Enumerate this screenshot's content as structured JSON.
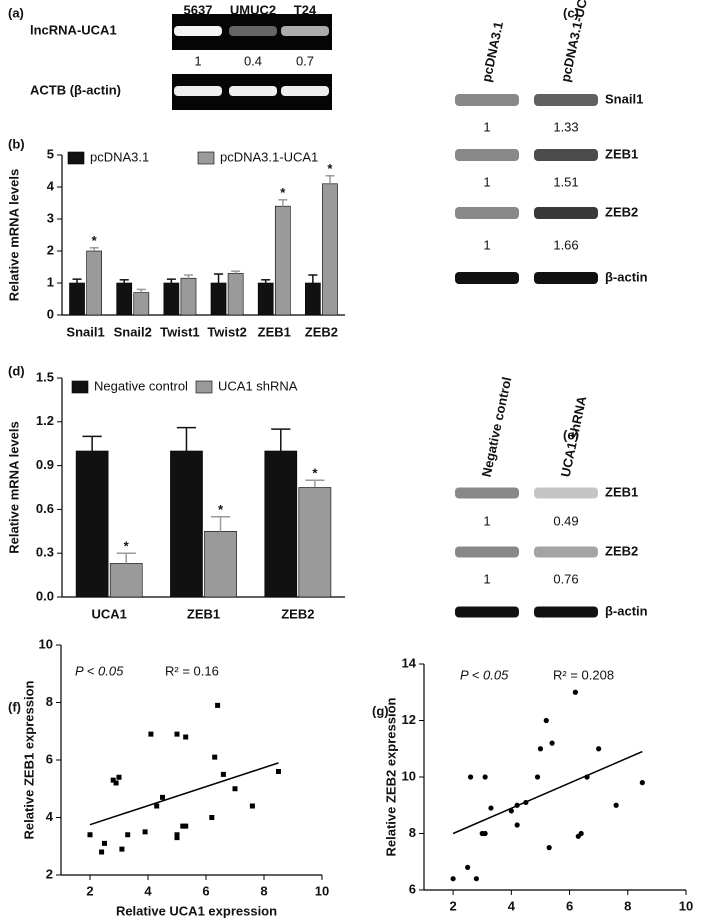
{
  "blots": [
    {
      "panel": "(a)",
      "lanes": [
        "5637",
        "UMUC2",
        "T24"
      ],
      "rows": [
        {
          "label": "lncRNA-UCA1",
          "values": [
            1,
            0.4,
            0.7
          ]
        },
        {
          "label": "ACTB (β-actin)"
        }
      ]
    },
    {
      "panel": "(c)",
      "lanes": [
        "pcDNA3.1",
        "pcDNA3.1-UCA1"
      ],
      "rows": [
        {
          "label": "Snail1",
          "values": [
            1,
            1.33
          ]
        },
        {
          "label": "ZEB1",
          "values": [
            1,
            1.51
          ]
        },
        {
          "label": "ZEB2",
          "values": [
            1,
            1.66
          ]
        },
        {
          "label": "β-actin"
        }
      ]
    },
    {
      "panel": "(e)",
      "lanes": [
        "Negative control",
        "UCA1 shRNA"
      ],
      "rows": [
        {
          "label": "ZEB1",
          "values": [
            1,
            0.49
          ]
        },
        {
          "label": "ZEB2",
          "values": [
            1,
            0.76
          ]
        },
        {
          "label": "β-actin"
        }
      ]
    }
  ],
  "chart_data": [
    {
      "type": "bar",
      "panel": "(b)",
      "y_label": "Relative mRNA levels",
      "categories": [
        "Snail1",
        "Snail2",
        "Twist1",
        "Twist2",
        "ZEB1",
        "ZEB2"
      ],
      "ylim": [
        0,
        5
      ],
      "yticks": [
        0,
        1,
        2,
        3,
        4,
        5
      ],
      "series": [
        {
          "name": "pcDNA3.1",
          "color": "#111111",
          "values": [
            1,
            1,
            1,
            1,
            1,
            1
          ],
          "errors": [
            0.12,
            0.1,
            0.12,
            0.28,
            0.1,
            0.25
          ]
        },
        {
          "name": "pcDNA3.1-UCA1",
          "color": "#9a9a9a",
          "values": [
            2.0,
            0.7,
            1.15,
            1.3,
            3.4,
            4.1
          ],
          "errors": [
            0.1,
            0.1,
            0.1,
            0.07,
            0.2,
            0.25
          ],
          "significance": [
            "*",
            null,
            null,
            null,
            "*",
            "*"
          ]
        }
      ]
    },
    {
      "type": "bar",
      "panel": "(d)",
      "y_label": "Relative mRNA levels",
      "categories": [
        "UCA1",
        "ZEB1",
        "ZEB2"
      ],
      "ylim": [
        0,
        1.5
      ],
      "yticks": [
        {
          "value": 0,
          "label": "0.0"
        },
        0.3,
        0.6,
        0.9,
        1.2,
        1.5
      ],
      "series": [
        {
          "name": "Negative control",
          "color": "#111111",
          "values": [
            1,
            1,
            1
          ],
          "errors": [
            0.1,
            0.16,
            0.15
          ]
        },
        {
          "name": "UCA1 shRNA",
          "color": "#9a9a9a",
          "values": [
            0.23,
            0.45,
            0.75
          ],
          "errors": [
            0.07,
            0.1,
            0.05
          ],
          "significance": [
            "*",
            "*",
            "*"
          ]
        }
      ]
    },
    {
      "type": "scatter",
      "panel": "(f)",
      "x_label": "Relative UCA1 expression",
      "y_label": "Relative ZEB1 expression",
      "annotations": [
        "P < 0.05",
        "R² = 0.16"
      ],
      "xlim": [
        1,
        10
      ],
      "xticks": [
        2,
        4,
        6,
        8,
        10
      ],
      "ylim": [
        2,
        10
      ],
      "yticks": [
        2,
        4,
        6,
        8,
        10
      ],
      "color": "#000000",
      "x": [
        2.0,
        2.4,
        2.5,
        2.8,
        2.9,
        3.0,
        3.1,
        3.3,
        3.9,
        4.1,
        4.3,
        4.5,
        5.0,
        5.0,
        5.0,
        5.2,
        5.3,
        5.3,
        6.2,
        6.3,
        6.4,
        6.6,
        7.0,
        7.6,
        8.5
      ],
      "y": [
        3.4,
        2.8,
        3.1,
        5.3,
        5.2,
        5.4,
        2.9,
        3.4,
        3.5,
        6.9,
        4.4,
        4.7,
        3.4,
        3.3,
        6.9,
        3.7,
        3.7,
        6.8,
        4.0,
        6.1,
        7.9,
        5.5,
        5.0,
        4.4,
        5.6
      ],
      "trendline": {
        "x": [
          2,
          8.5
        ],
        "y": [
          3.75,
          5.9
        ]
      }
    },
    {
      "type": "scatter",
      "panel": "(g)",
      "x_label": "Relative UCA1 expression",
      "y_label": "Relative ZEB2 expression",
      "annotations": [
        "P < 0.05",
        "R² = 0.208"
      ],
      "xlim": [
        1,
        10
      ],
      "xticks": [
        2,
        4,
        6,
        8,
        10
      ],
      "ylim": [
        6,
        14
      ],
      "yticks": [
        6,
        8,
        10,
        12,
        14
      ],
      "color": "#000000",
      "x": [
        2.0,
        2.5,
        2.6,
        2.8,
        3.0,
        3.1,
        3.1,
        3.3,
        4.0,
        4.2,
        4.2,
        4.5,
        4.9,
        5.0,
        5.2,
        5.3,
        5.4,
        6.2,
        6.3,
        6.4,
        6.6,
        7.0,
        7.6,
        8.5
      ],
      "y": [
        6.4,
        6.8,
        10.0,
        6.4,
        8.0,
        8.0,
        10.0,
        8.9,
        8.8,
        8.3,
        9.0,
        9.1,
        10.0,
        11.0,
        12.0,
        7.5,
        11.2,
        13.0,
        7.9,
        8.0,
        10.0,
        11.0,
        9.0,
        9.8
      ],
      "trendline": {
        "x": [
          2,
          8.5
        ],
        "y": [
          8.0,
          10.9
        ]
      }
    }
  ]
}
